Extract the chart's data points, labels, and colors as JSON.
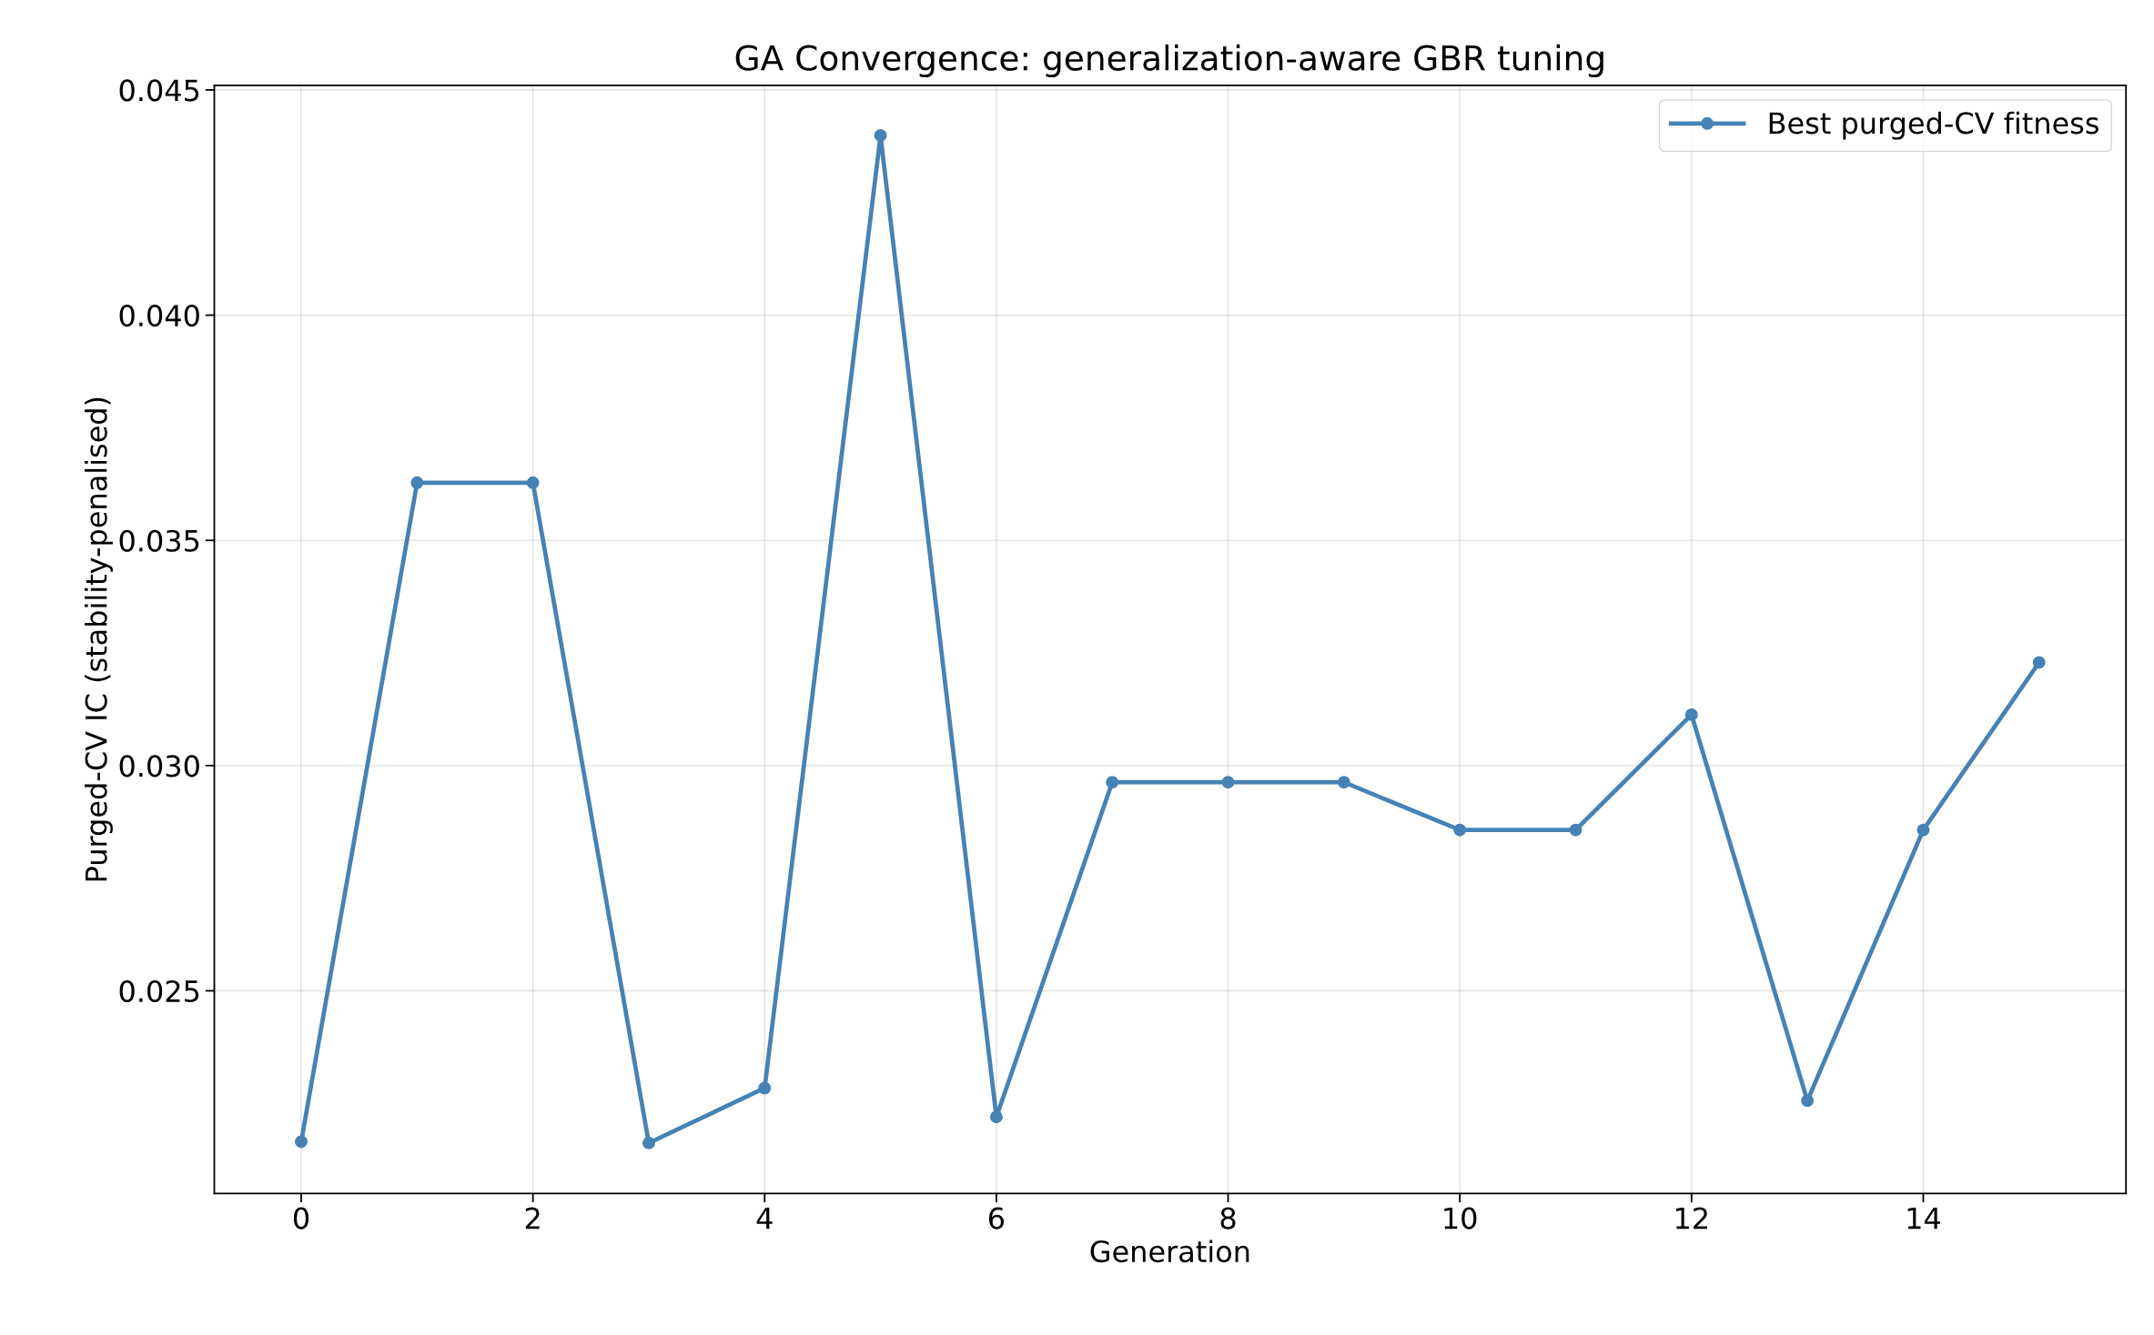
{
  "chart_data": {
    "type": "line",
    "title": "GA Convergence: generalization-aware GBR tuning",
    "xlabel": "Generation",
    "ylabel": "Purged-CV IC (stability-penalised)",
    "x": [
      0,
      1,
      2,
      3,
      4,
      5,
      6,
      7,
      8,
      9,
      10,
      11,
      12,
      13,
      14,
      15
    ],
    "series": [
      {
        "name": "Best purged-CV fitness",
        "color": "#4682b4",
        "values": [
          0.02165,
          0.03628,
          0.03628,
          0.02162,
          0.02284,
          0.04399,
          0.0222,
          0.02963,
          0.02963,
          0.02963,
          0.02857,
          0.02857,
          0.03113,
          0.02256,
          0.02857,
          0.03229
        ]
      }
    ],
    "xlim": [
      -0.75,
      15.75
    ],
    "xticks": [
      0,
      2,
      4,
      6,
      8,
      10,
      12,
      14
    ],
    "ylim": [
      0.0205,
      0.0451
    ],
    "yticks": [
      0.025,
      {
        "value": 0.03,
        "label": "0.030"
      },
      0.035,
      {
        "value": 0.04,
        "label": "0.040"
      },
      0.045
    ],
    "grid": true,
    "legend": "top right",
    "marker": "circle",
    "line_style": "solid"
  }
}
